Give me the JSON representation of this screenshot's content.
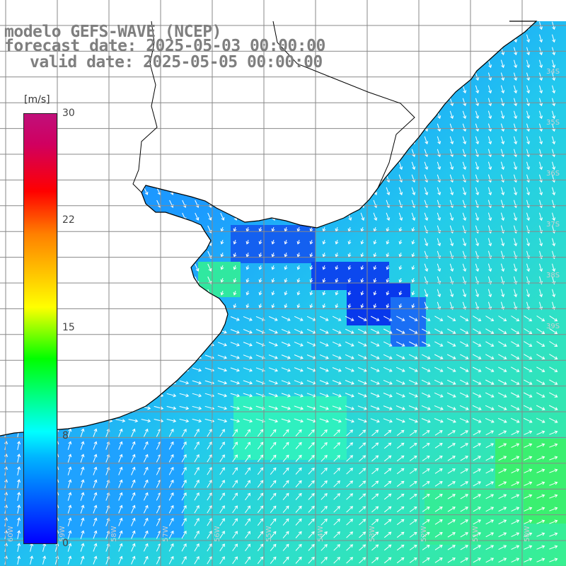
{
  "title": {
    "line1": "modelo GEFS-WAVE (NCEP)",
    "line2": "forecast date: 2025-05-03 00:00:00",
    "line3": "valid date: 2025-05-05 00:00:00"
  },
  "colorbar": {
    "unit": "[m/s]",
    "ticks": [
      "30",
      "22",
      "15",
      "8",
      "0"
    ],
    "tick_values": [
      30,
      22,
      15,
      8,
      0
    ],
    "range": [
      0,
      30
    ]
  },
  "map": {
    "lat_labels": [
      "34S",
      "35S",
      "36S",
      "37S",
      "38S",
      "39S"
    ],
    "lon_labels": [
      "60W",
      "59W",
      "58W",
      "57W",
      "56W",
      "55W",
      "54W",
      "53W",
      "52W",
      "51W",
      "50W"
    ],
    "colors": {
      "land": "#ffffff",
      "grid": "#888888",
      "coast": "#000000",
      "arrows": "#ffffff"
    }
  }
}
